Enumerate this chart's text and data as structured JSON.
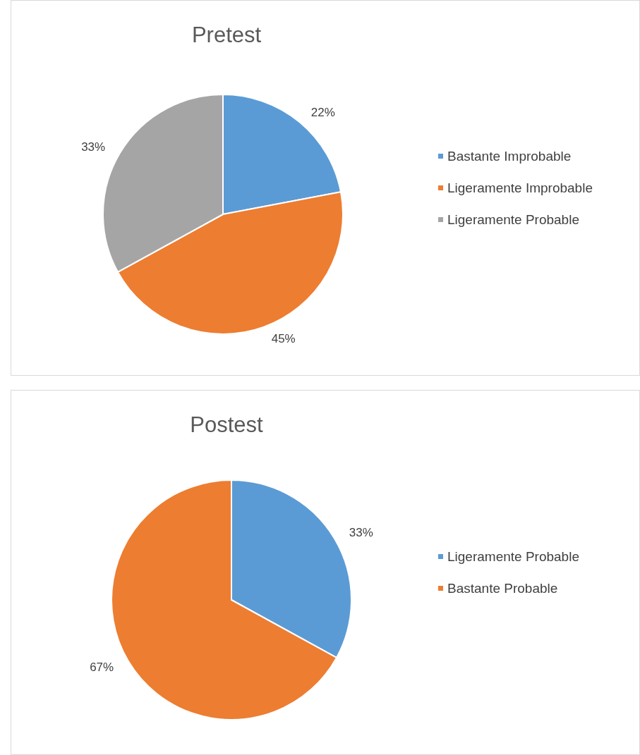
{
  "chart_data": [
    {
      "type": "pie",
      "title": "Pretest",
      "categories": [
        "Bastante Improbable",
        "Ligeramente Improbable",
        "Ligeramente Probable"
      ],
      "values": [
        22,
        45,
        33
      ],
      "colors": [
        "#5b9bd5",
        "#ed7d31",
        "#a5a5a5"
      ],
      "value_labels": [
        "22%",
        "45%",
        "33%"
      ],
      "legend": "right"
    },
    {
      "type": "pie",
      "title": "Postest",
      "categories": [
        "Ligeramente Probable",
        "Bastante Probable"
      ],
      "values": [
        33,
        67
      ],
      "colors": [
        "#5b9bd5",
        "#ed7d31"
      ],
      "value_labels": [
        "33%",
        "67%"
      ],
      "legend": "right"
    }
  ]
}
